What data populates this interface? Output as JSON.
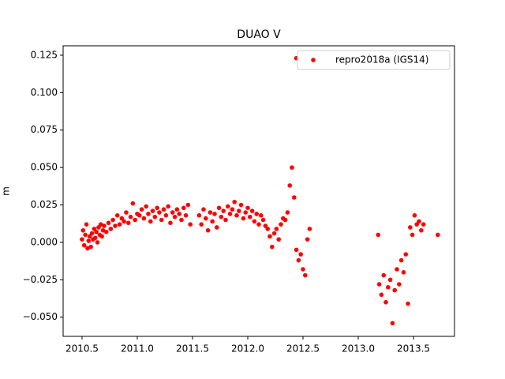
{
  "chart_data": {
    "type": "scatter",
    "title": "DUAO V",
    "ylabel": "m",
    "xlim": [
      2010.329,
      2013.871
    ],
    "ylim": [
      -0.0628,
      0.1313
    ],
    "xticks": [
      2010.5,
      {
        "value": 2011.0,
        "label": "2011.0"
      },
      2011.5,
      {
        "value": 2012.0,
        "label": "2012.0"
      },
      2012.5,
      {
        "value": 2013.0,
        "label": "2013.0"
      },
      2013.5
    ],
    "yticks": [
      {
        "value": -0.05,
        "label": "−0.050"
      },
      {
        "value": -0.025,
        "label": "−0.025"
      },
      {
        "value": 0,
        "label": "0.000"
      },
      {
        "value": 0.025,
        "label": "0.025"
      },
      {
        "value": 0.05,
        "label": "0.050"
      },
      {
        "value": 0.075,
        "label": "0.075"
      },
      {
        "value": 0.1,
        "label": "0.100"
      },
      {
        "value": 0.125,
        "label": "0.125"
      }
    ],
    "legend": "upper right",
    "series": [
      {
        "name": "repro2018a (IGS14)",
        "color": "#ff0000",
        "x": [
          2010.5,
          2010.51,
          2010.52,
          2010.53,
          2010.54,
          2010.55,
          2010.56,
          2010.57,
          2010.58,
          2010.59,
          2010.6,
          2010.61,
          2010.62,
          2010.63,
          2010.64,
          2010.65,
          2010.66,
          2010.67,
          2010.68,
          2010.69,
          2010.7,
          2010.72,
          2010.74,
          2010.76,
          2010.78,
          2010.8,
          2010.82,
          2010.84,
          2010.86,
          2010.88,
          2010.9,
          2010.92,
          2010.94,
          2010.96,
          2010.98,
          2011.0,
          2011.02,
          2011.04,
          2011.06,
          2011.08,
          2011.1,
          2011.12,
          2011.14,
          2011.16,
          2011.18,
          2011.2,
          2011.22,
          2011.24,
          2011.26,
          2011.28,
          2011.3,
          2011.32,
          2011.34,
          2011.36,
          2011.38,
          2011.4,
          2011.42,
          2011.44,
          2011.46,
          2011.48,
          2011.56,
          2011.58,
          2011.6,
          2011.62,
          2011.64,
          2011.66,
          2011.68,
          2011.7,
          2011.72,
          2011.74,
          2011.76,
          2011.78,
          2011.8,
          2011.82,
          2011.84,
          2011.86,
          2011.88,
          2011.9,
          2011.92,
          2011.94,
          2011.96,
          2011.98,
          2012.0,
          2012.02,
          2012.04,
          2012.06,
          2012.08,
          2012.1,
          2012.12,
          2012.14,
          2012.16,
          2012.18,
          2012.2,
          2012.22,
          2012.24,
          2012.26,
          2012.28,
          2012.3,
          2012.32,
          2012.34,
          2012.36,
          2012.38,
          2012.4,
          2012.42,
          2012.44,
          2012.46,
          2012.48,
          2012.5,
          2012.52,
          2012.54,
          2012.56,
          2012.44,
          2013.18,
          2013.19,
          2013.21,
          2013.23,
          2013.25,
          2013.27,
          2013.29,
          2013.31,
          2013.33,
          2013.35,
          2013.37,
          2013.39,
          2013.41,
          2013.43,
          2013.45,
          2013.47,
          2013.49,
          2013.51,
          2013.53,
          2013.55,
          2013.57,
          2013.59,
          2013.72
        ],
        "values": [
          0.002,
          0.008,
          -0.002,
          0.005,
          0.012,
          -0.004,
          0.001,
          0.004,
          -0.003,
          0.006,
          0.002,
          0.009,
          0.003,
          0.007,
          0.0,
          0.01,
          0.005,
          0.012,
          0.004,
          0.008,
          0.011,
          0.007,
          0.013,
          0.009,
          0.015,
          0.011,
          0.018,
          0.012,
          0.016,
          0.014,
          0.02,
          0.013,
          0.017,
          0.026,
          0.015,
          0.019,
          0.018,
          0.022,
          0.016,
          0.024,
          0.019,
          0.014,
          0.021,
          0.017,
          0.023,
          0.02,
          0.015,
          0.022,
          0.018,
          0.024,
          0.013,
          0.02,
          0.017,
          0.022,
          0.019,
          0.015,
          0.023,
          0.018,
          0.025,
          0.012,
          0.018,
          0.012,
          0.022,
          0.016,
          0.008,
          0.02,
          0.014,
          0.019,
          0.01,
          0.023,
          0.017,
          0.021,
          0.015,
          0.024,
          0.019,
          0.022,
          0.027,
          0.018,
          0.021,
          0.025,
          0.016,
          0.02,
          0.023,
          0.017,
          0.021,
          0.014,
          0.019,
          0.012,
          0.018,
          0.015,
          0.011,
          0.009,
          0.004,
          -0.003,
          0.006,
          0.009,
          0.002,
          0.012,
          0.016,
          0.015,
          0.02,
          0.038,
          0.05,
          0.03,
          -0.005,
          -0.012,
          -0.008,
          -0.018,
          -0.022,
          0.002,
          0.009,
          0.123,
          0.005,
          -0.028,
          -0.035,
          -0.022,
          -0.04,
          -0.03,
          -0.025,
          -0.054,
          -0.032,
          -0.018,
          -0.028,
          -0.012,
          -0.02,
          -0.008,
          -0.041,
          0.01,
          0.005,
          0.018,
          0.012,
          0.014,
          0.008,
          0.012,
          0.005
        ]
      }
    ]
  }
}
